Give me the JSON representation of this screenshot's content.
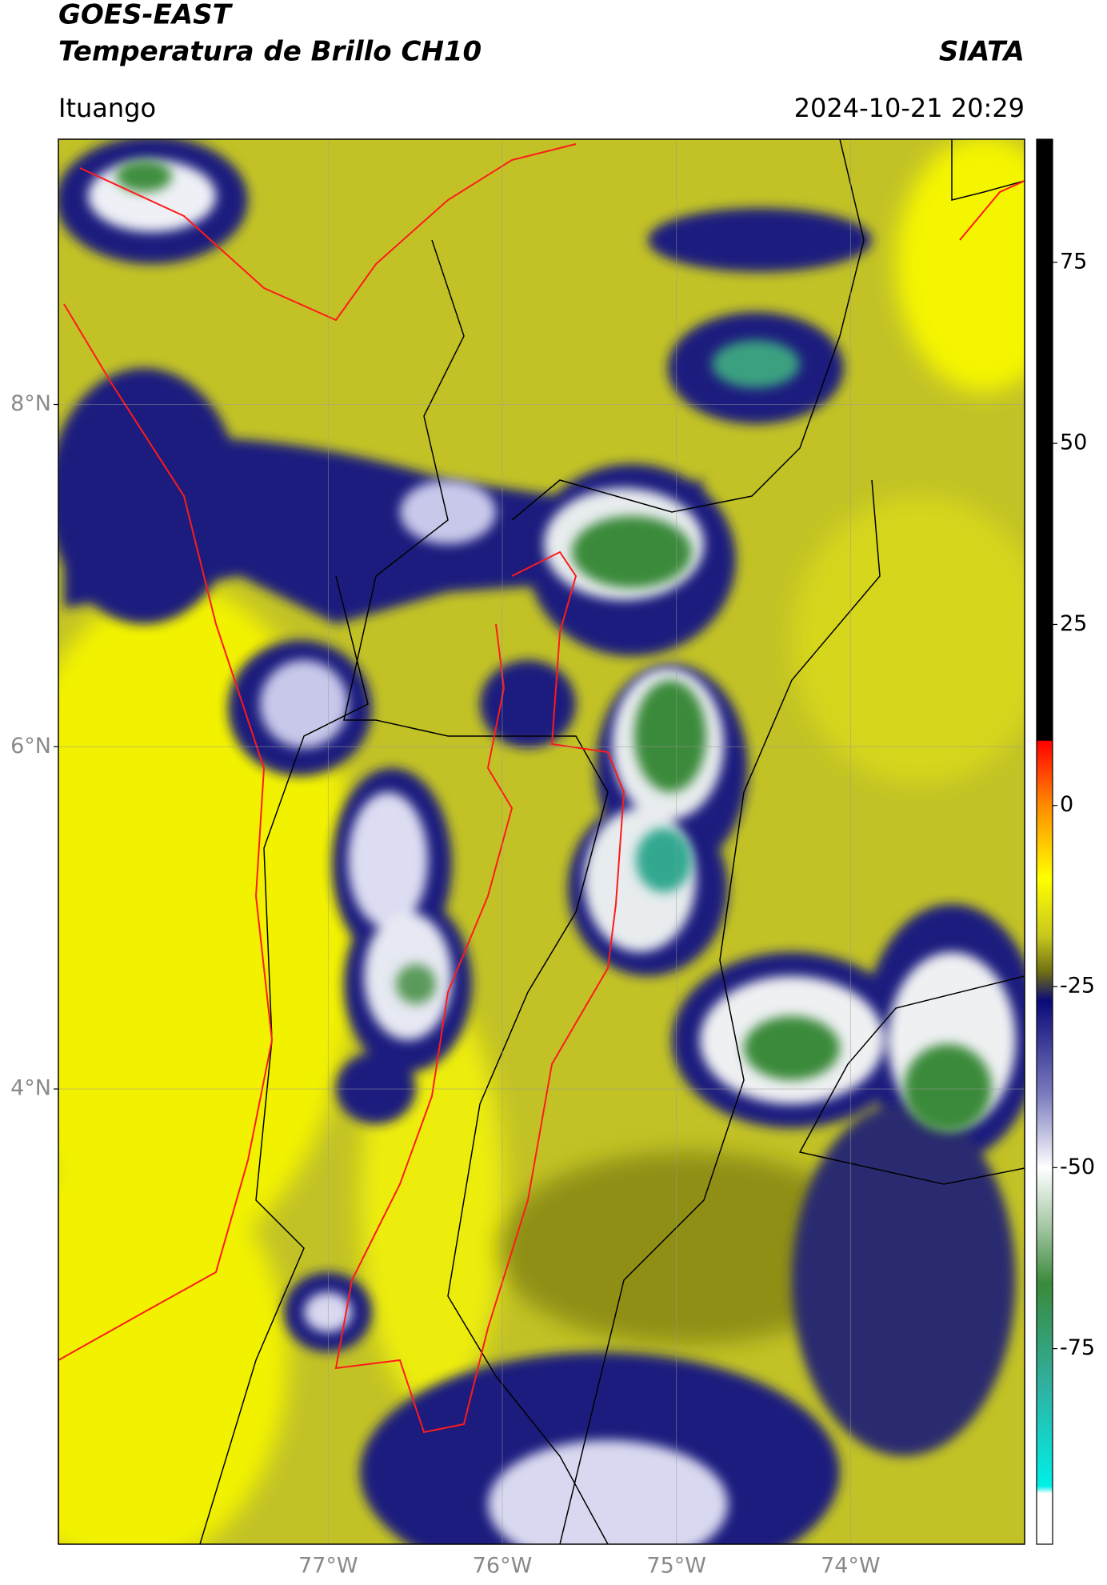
{
  "map": {
    "title": "GOES-EAST",
    "subtitle": "Temperatura de Brillo CH10",
    "source": "SIATA",
    "location": "Ituango",
    "datetime": "2024-10-21 20:29",
    "xlim": [
      -78.55,
      -73.0
    ],
    "ylim": [
      1.34,
      9.55
    ],
    "xticks": [
      {
        "value": -77,
        "label": "77°W"
      },
      {
        "value": -76,
        "label": "76°W"
      },
      {
        "value": -75,
        "label": "75°W"
      },
      {
        "value": -74,
        "label": "74°W"
      }
    ],
    "yticks": [
      {
        "value": 8,
        "label": "8°N"
      },
      {
        "value": 6,
        "label": "6°N"
      },
      {
        "value": 4,
        "label": "4°N"
      }
    ],
    "colorbar": {
      "lim": [
        -102,
        92
      ],
      "ticks": [
        75,
        50,
        25,
        0,
        -25,
        -50,
        -75
      ],
      "stops": [
        {
          "value": 92,
          "color": "#000000"
        },
        {
          "value": 9,
          "color": "#000000"
        },
        {
          "value": 8.9,
          "color": "#ff0000"
        },
        {
          "value": 0,
          "color": "#ff8c00"
        },
        {
          "value": -10,
          "color": "#ffff00"
        },
        {
          "value": -18,
          "color": "#c8c81e"
        },
        {
          "value": -23,
          "color": "#6e6e14"
        },
        {
          "value": -27,
          "color": "#0a0a78"
        },
        {
          "value": -40,
          "color": "#7c7cc0"
        },
        {
          "value": -50,
          "color": "#ffffff"
        },
        {
          "value": -58,
          "color": "#a6c8a6"
        },
        {
          "value": -66,
          "color": "#3a8a3a"
        },
        {
          "value": -80,
          "color": "#30b0a0"
        },
        {
          "value": -94,
          "color": "#00f0e8"
        },
        {
          "value": -95,
          "color": "#ffffff"
        },
        {
          "value": -102,
          "color": "#ffffff"
        }
      ]
    }
  }
}
